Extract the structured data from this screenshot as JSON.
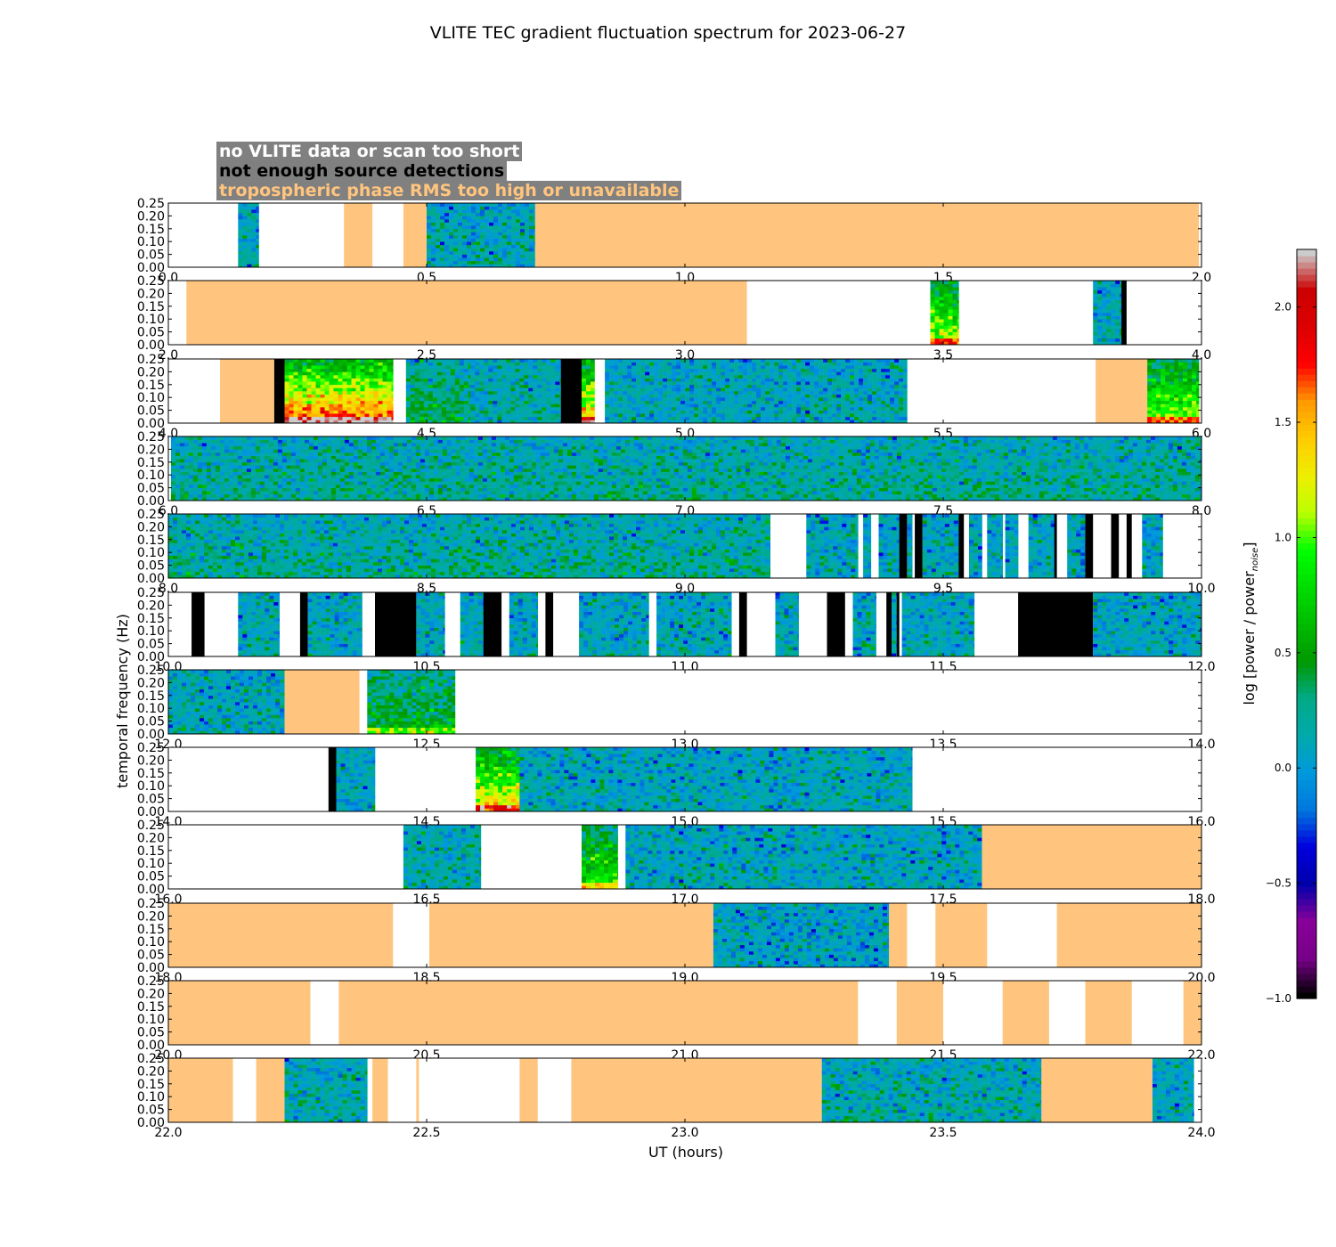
{
  "chart_data": {
    "type": "heatmap",
    "title": "VLITE TEC gradient fluctuation spectrum for 2023-06-27",
    "xlabel": "UT (hours)",
    "ylabel": "temporal frequency (Hz)",
    "ylim": [
      0,
      0.25
    ],
    "yticks": [
      "0.00",
      "0.05",
      "0.10",
      "0.15",
      "0.20",
      "0.25"
    ],
    "legend": [
      {
        "label": "no VLITE data or scan too short",
        "color": "#ffffff"
      },
      {
        "label": "not enough source detections",
        "color": "#000000"
      },
      {
        "label": "tropospheric phase RMS too high or unavailable",
        "color": "#ffc57e"
      }
    ],
    "colorbar": {
      "label": "log [power / power",
      "label_sub": "noise",
      "label_end": "]",
      "min": -1.0,
      "max": 2.25,
      "ticks": [
        "−1.0",
        "−0.5",
        "0.0",
        "0.5",
        "1.0",
        "1.5",
        "2.0"
      ],
      "tick_values": [
        -1.0,
        -0.5,
        0.0,
        0.5,
        1.0,
        1.5,
        2.0
      ],
      "colormap": "nipy_spectral"
    },
    "panels": [
      {
        "xlim": [
          0,
          2
        ],
        "xticks": [
          "0.0",
          "0.5",
          "1.0",
          "1.5",
          "2.0"
        ],
        "segments": [
          [
            0.135,
            0.175,
            "data",
            0.05
          ],
          [
            0.34,
            0.395,
            "trop"
          ],
          [
            0.455,
            0.5,
            "trop"
          ],
          [
            0.5,
            0.71,
            "data",
            0.05
          ],
          [
            0.71,
            1.995,
            "trop"
          ]
        ]
      },
      {
        "xlim": [
          2,
          4
        ],
        "xticks": [
          "2.0",
          "2.5",
          "3.0",
          "3.5",
          "4.0"
        ],
        "segments": [
          [
            2.035,
            3.12,
            "trop"
          ],
          [
            3.475,
            3.53,
            "data",
            0.9
          ],
          [
            3.79,
            3.845,
            "data",
            0.05
          ],
          [
            3.845,
            3.855,
            "nodet"
          ]
        ]
      },
      {
        "xlim": [
          4,
          6
        ],
        "xticks": [
          "4.0",
          "4.5",
          "5.0",
          "5.5",
          "6.0"
        ],
        "segments": [
          [
            4.1,
            4.205,
            "trop"
          ],
          [
            4.205,
            4.225,
            "nodet"
          ],
          [
            4.225,
            4.435,
            "data",
            1.4
          ],
          [
            4.46,
            4.585,
            "data",
            0.3
          ],
          [
            4.585,
            4.76,
            "data",
            0.1
          ],
          [
            4.76,
            4.8,
            "nodet"
          ],
          [
            4.8,
            4.825,
            "data",
            1.2
          ],
          [
            4.845,
            5.43,
            "data",
            0.05
          ],
          [
            5.795,
            5.895,
            "trop"
          ],
          [
            5.895,
            5.995,
            "data",
            0.9
          ]
        ]
      },
      {
        "xlim": [
          6,
          8
        ],
        "xticks": [
          "6.0",
          "6.5",
          "7.0",
          "7.5",
          "8.0"
        ],
        "segments": [
          [
            6.005,
            8.0,
            "data",
            0.15
          ]
        ]
      },
      {
        "xlim": [
          8,
          10
        ],
        "xticks": [
          "8.0",
          "8.5",
          "9.0",
          "9.5",
          "10.0"
        ],
        "segments": [
          [
            8.0,
            9.165,
            "data",
            0.15
          ],
          [
            9.235,
            9.335,
            "data",
            0.05
          ],
          [
            9.345,
            9.36,
            "data",
            0.05
          ],
          [
            9.375,
            9.415,
            "data",
            0.05
          ],
          [
            9.415,
            9.43,
            "nodet"
          ],
          [
            9.43,
            9.44,
            "data",
            0.05
          ],
          [
            9.445,
            9.46,
            "nodet"
          ],
          [
            9.46,
            9.53,
            "data",
            0.05
          ],
          [
            9.53,
            9.54,
            "nodet"
          ],
          [
            9.55,
            9.575,
            "data",
            0.05
          ],
          [
            9.585,
            9.615,
            "data",
            0.05
          ],
          [
            9.62,
            9.645,
            "data",
            0.05
          ],
          [
            9.665,
            9.715,
            "data",
            0.05
          ],
          [
            9.715,
            9.72,
            "nodet"
          ],
          [
            9.74,
            9.775,
            "data",
            0.05
          ],
          [
            9.775,
            9.79,
            "nodet"
          ],
          [
            9.825,
            9.84,
            "nodet"
          ],
          [
            9.855,
            9.865,
            "nodet"
          ],
          [
            9.885,
            9.925,
            "data",
            0.05
          ]
        ]
      },
      {
        "xlim": [
          10,
          12
        ],
        "xticks": [
          "10.0",
          "10.5",
          "11.0",
          "11.5",
          "12.0"
        ],
        "segments": [
          [
            10.045,
            10.07,
            "nodet"
          ],
          [
            10.135,
            10.215,
            "data",
            0.05
          ],
          [
            10.255,
            10.27,
            "nodet"
          ],
          [
            10.27,
            10.375,
            "data",
            0.05
          ],
          [
            10.4,
            10.48,
            "nodet"
          ],
          [
            10.48,
            10.535,
            "data",
            0.05
          ],
          [
            10.565,
            10.61,
            "data",
            0.05
          ],
          [
            10.61,
            10.645,
            "nodet"
          ],
          [
            10.66,
            10.715,
            "data",
            0.05
          ],
          [
            10.73,
            10.745,
            "nodet"
          ],
          [
            10.795,
            10.93,
            "data",
            0.05
          ],
          [
            10.945,
            11.09,
            "data",
            0.05
          ],
          [
            11.105,
            11.12,
            "nodet"
          ],
          [
            11.175,
            11.22,
            "data",
            0.05
          ],
          [
            11.275,
            11.31,
            "nodet"
          ],
          [
            11.325,
            11.37,
            "data",
            0.05
          ],
          [
            11.39,
            11.4,
            "nodet"
          ],
          [
            11.4,
            11.41,
            "data",
            0.05
          ],
          [
            11.41,
            11.415,
            "nodet"
          ],
          [
            11.42,
            11.56,
            "data",
            0.05
          ],
          [
            11.645,
            11.79,
            "nodet"
          ],
          [
            11.79,
            12.0,
            "data",
            0.05
          ]
        ]
      },
      {
        "xlim": [
          12,
          14
        ],
        "xticks": [
          "12.0",
          "12.5",
          "13.0",
          "13.5",
          "14.0"
        ],
        "segments": [
          [
            12.0,
            12.225,
            "data",
            0.05
          ],
          [
            12.225,
            12.37,
            "trop"
          ],
          [
            12.385,
            12.555,
            "data",
            0.4
          ]
        ]
      },
      {
        "xlim": [
          14,
          16
        ],
        "xticks": [
          "14.0",
          "14.5",
          "15.0",
          "15.5",
          "16.0"
        ],
        "segments": [
          [
            14.31,
            14.325,
            "nodet"
          ],
          [
            14.325,
            14.4,
            "data",
            0.05
          ],
          [
            14.595,
            14.68,
            "data",
            1.1
          ],
          [
            14.68,
            15.44,
            "data",
            0.05
          ]
        ]
      },
      {
        "xlim": [
          16,
          18
        ],
        "xticks": [
          "16.0",
          "16.5",
          "17.0",
          "17.5",
          "18.0"
        ],
        "segments": [
          [
            16.455,
            16.605,
            "data",
            0.1
          ],
          [
            16.8,
            16.87,
            "data",
            0.7
          ],
          [
            16.885,
            17.575,
            "data",
            0.05
          ],
          [
            17.575,
            18.0,
            "trop"
          ]
        ]
      },
      {
        "xlim": [
          18,
          20
        ],
        "xticks": [
          "18.0",
          "18.5",
          "19.0",
          "19.5",
          "20.0"
        ],
        "segments": [
          [
            18.0,
            18.435,
            "trop"
          ],
          [
            18.505,
            19.055,
            "trop"
          ],
          [
            19.055,
            19.395,
            "data",
            0.0
          ],
          [
            19.395,
            19.43,
            "trop"
          ],
          [
            19.485,
            19.585,
            "trop"
          ],
          [
            19.72,
            20.0,
            "trop"
          ]
        ]
      },
      {
        "xlim": [
          20,
          22
        ],
        "xticks": [
          "20.0",
          "20.5",
          "21.0",
          "21.5",
          "22.0"
        ],
        "segments": [
          [
            20.0,
            20.275,
            "trop"
          ],
          [
            20.33,
            21.335,
            "trop"
          ],
          [
            21.41,
            21.5,
            "trop"
          ],
          [
            21.615,
            21.705,
            "trop"
          ],
          [
            21.775,
            21.865,
            "trop"
          ],
          [
            21.965,
            22.0,
            "trop"
          ]
        ]
      },
      {
        "xlim": [
          22,
          24
        ],
        "xticks": [
          "22.0",
          "22.5",
          "23.0",
          "23.5",
          "24.0"
        ],
        "segments": [
          [
            22.0,
            22.125,
            "trop"
          ],
          [
            22.17,
            22.225,
            "trop"
          ],
          [
            22.225,
            22.385,
            "data",
            0.1
          ],
          [
            22.395,
            22.425,
            "trop"
          ],
          [
            22.48,
            22.485,
            "trop"
          ],
          [
            22.68,
            22.715,
            "trop"
          ],
          [
            22.78,
            23.265,
            "trop"
          ],
          [
            23.265,
            23.69,
            "data",
            0.1
          ],
          [
            23.69,
            23.905,
            "trop"
          ],
          [
            23.905,
            23.985,
            "data",
            0.05
          ]
        ]
      }
    ]
  }
}
